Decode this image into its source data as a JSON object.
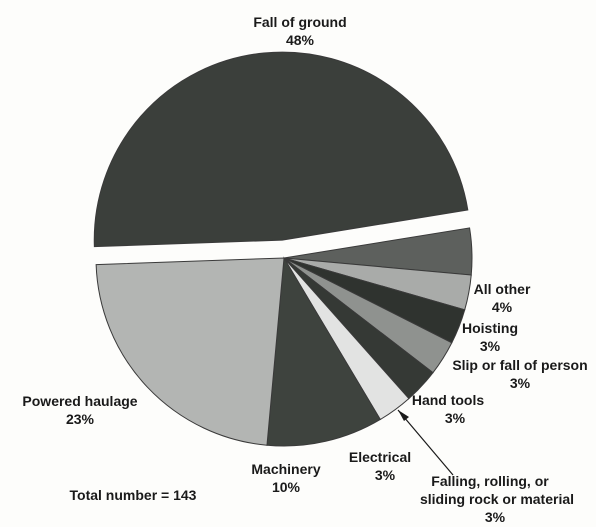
{
  "chart_data": {
    "type": "pie",
    "title": "",
    "total_label": "Total number = 143",
    "slices": [
      {
        "name": "Fall of ground",
        "value": 48,
        "value_label": "48%",
        "color": "#3b3f3b",
        "exploded": true
      },
      {
        "name": "All other",
        "value": 4,
        "value_label": "4%",
        "color": "#5d605d"
      },
      {
        "name": "Hoisting",
        "value": 3,
        "value_label": "3%",
        "color": "#a9aba9"
      },
      {
        "name": "Slip or fall of person",
        "value": 3,
        "value_label": "3%",
        "color": "#2f332f"
      },
      {
        "name": "Hand tools",
        "value": 3,
        "value_label": "3%",
        "color": "#8f928f"
      },
      {
        "name": "Falling, rolling, or sliding rock or material",
        "value": 3,
        "value_label": "3%",
        "color": "#353935"
      },
      {
        "name": "Electrical",
        "value": 3,
        "value_label": "3%",
        "color": "#e2e3e2"
      },
      {
        "name": "Machinery",
        "value": 10,
        "value_label": "10%",
        "color": "#3e433e"
      },
      {
        "name": "Powered haulage",
        "value": 23,
        "value_label": "23%",
        "color": "#b3b5b3"
      }
    ]
  }
}
